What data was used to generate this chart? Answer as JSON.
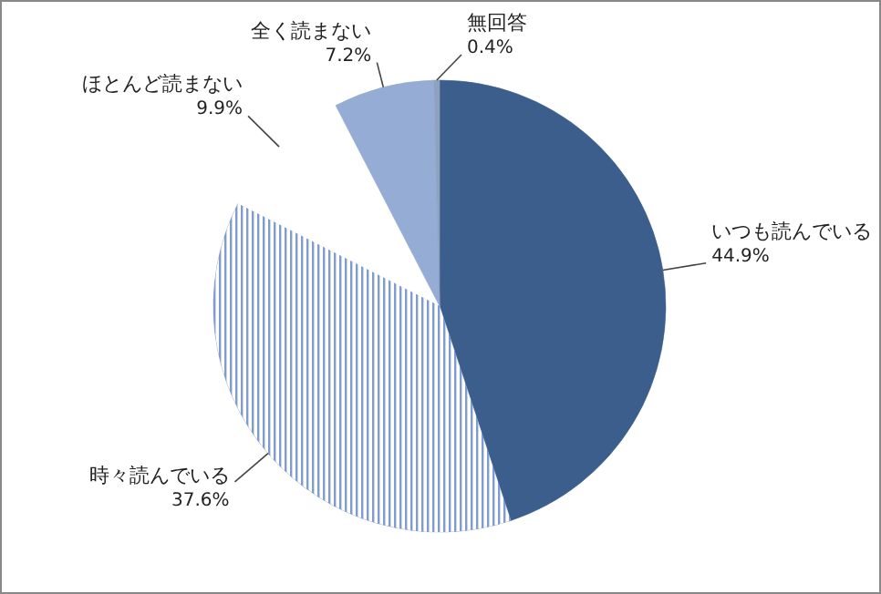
{
  "chart_data": {
    "type": "pie",
    "categories": [
      "いつも読んでいる",
      "時々読んでいる",
      "ほとんど読まない",
      "全く読まない",
      "無回答"
    ],
    "values": [
      44.9,
      37.6,
      9.9,
      7.2,
      0.4
    ],
    "value_labels": [
      "44.9%",
      "37.6%",
      "9.9%",
      "7.2%",
      "0.4%"
    ],
    "colors": [
      "#3b5e8c",
      "#7f9ccc",
      "#ffffff",
      "#95acd4",
      "#8ea2c0"
    ],
    "legend": false
  }
}
